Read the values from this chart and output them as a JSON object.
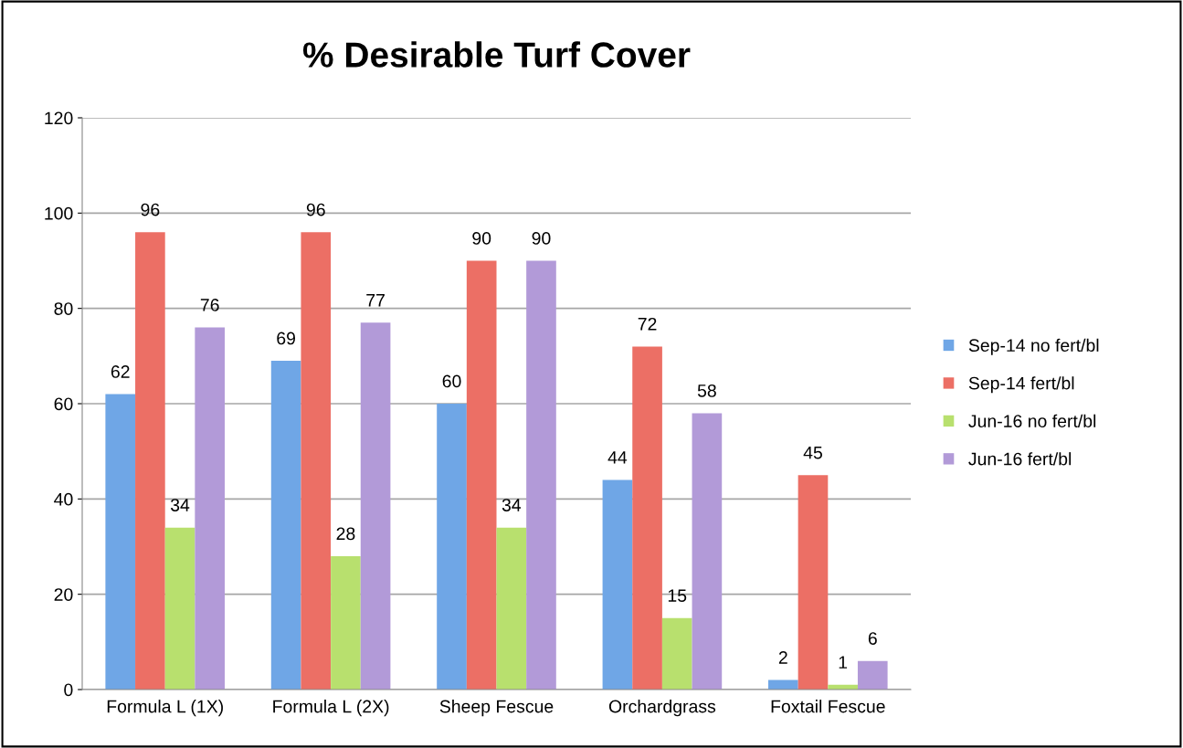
{
  "chart_data": {
    "type": "bar",
    "title": "% Desirable Turf Cover",
    "categories": [
      "Formula L (1X)",
      "Formula L (2X)",
      "Sheep Fescue",
      "Orchardgrass",
      "Foxtail Fescue"
    ],
    "series": [
      {
        "name": "Sep-14 no fert/bl",
        "color": "#6fa6e6",
        "values": [
          62,
          69,
          60,
          44,
          2
        ]
      },
      {
        "name": "Sep-14 fert/bl",
        "color": "#ec6f65",
        "values": [
          96,
          96,
          90,
          72,
          45
        ]
      },
      {
        "name": "Jun-16 no fert/bl",
        "color": "#b8e06e",
        "values": [
          34,
          28,
          34,
          15,
          1
        ]
      },
      {
        "name": "Jun-16 fert/bl",
        "color": "#b29ad8",
        "values": [
          76,
          77,
          90,
          58,
          6
        ]
      }
    ],
    "ylim": [
      0,
      120
    ],
    "yticks": [
      0,
      20,
      40,
      60,
      80,
      100,
      120
    ],
    "grid": "y",
    "legend": "right",
    "data_labels": true
  }
}
